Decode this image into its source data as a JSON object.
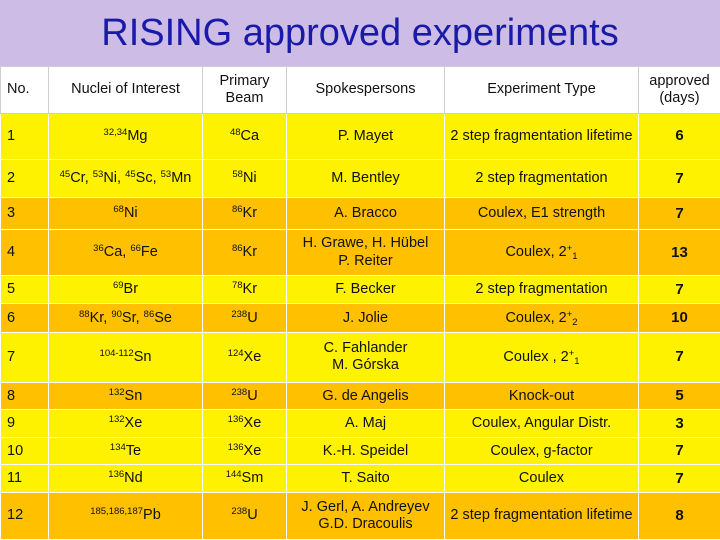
{
  "title": "RISING approved experiments",
  "headers": {
    "no": "No.",
    "nuclei": "Nuclei of Interest",
    "beam": "Primary Beam",
    "spokes": "Spokespersons",
    "type": "Experiment  Type",
    "days": "approved (days)"
  },
  "rows": [
    {
      "no": "1",
      "nuclei_a": "32,34",
      "nuclei_b": "Mg",
      "beam_a": "48",
      "beam_b": "Ca",
      "spokes": "P. Mayet",
      "type": "2 step fragmentation lifetime",
      "days": "6"
    },
    {
      "no": "2",
      "n1a": "45",
      "n1b": "Cr, ",
      "n2a": "53",
      "n2b": "Ni, ",
      "n3a": "45",
      "n3b": "Sc, ",
      "n4a": "53",
      "n4b": "Mn",
      "beam_a": "58",
      "beam_b": "Ni",
      "spokes": "M. Bentley",
      "type": "2 step fragmentation",
      "days": "7"
    },
    {
      "no": "3",
      "nuclei_a": "68",
      "nuclei_b": "Ni",
      "beam_a": "86",
      "beam_b": "Kr",
      "spokes": "A. Bracco",
      "type": "Coulex, E1 strength",
      "days": "7"
    },
    {
      "no": "4",
      "n1a": "36",
      "n1b": "Ca, ",
      "n2a": "66",
      "n2b": "Fe",
      "beam_a": "86",
      "beam_b": "Kr",
      "spokes1": "H. Grawe, H. Hübel",
      "spokes2": "P. Reiter",
      "type_a": "Coulex, 2",
      "type_sup": "+",
      "type_sub": "1",
      "days": "13"
    },
    {
      "no": "5",
      "nuclei_a": "69",
      "nuclei_b": "Br",
      "beam_a": "78",
      "beam_b": "Kr",
      "spokes": "F. Becker",
      "type": "2 step fragmentation",
      "days": "7"
    },
    {
      "no": "6",
      "n1a": "88",
      "n1b": "Kr, ",
      "n2a": "90",
      "n2b": "Sr, ",
      "n3a": "86",
      "n3b": "Se",
      "beam_a": "238",
      "beam_b": "U",
      "spokes": "J. Jolie",
      "type_a": "Coulex, 2",
      "type_sup": "+",
      "type_sub": "2",
      "days": "10"
    },
    {
      "no": "7",
      "nuclei_a": "104-112",
      "nuclei_b": "Sn",
      "beam_a": "124",
      "beam_b": "Xe",
      "spokes1": "C. Fahlander",
      "spokes2": "M. Górska",
      "type_a": "Coulex , 2",
      "type_sup": "+",
      "type_sub": "1",
      "days": "7"
    },
    {
      "no": "8",
      "nuclei_a": "132",
      "nuclei_b": "Sn",
      "beam_a": "238",
      "beam_b": "U",
      "spokes": "G. de Angelis",
      "type": "Knock-out",
      "days": "5"
    },
    {
      "no": "9",
      "nuclei_a": "132",
      "nuclei_b": "Xe",
      "beam_a": "136",
      "beam_b": "Xe",
      "spokes": "A. Maj",
      "type": "Coulex, Angular Distr.",
      "days": "3"
    },
    {
      "no": "10",
      "nuclei_a": "134",
      "nuclei_b": "Te",
      "beam_a": "136",
      "beam_b": "Xe",
      "spokes": "K.-H. Speidel",
      "type": "Coulex, g-factor",
      "days": "7"
    },
    {
      "no": "11",
      "nuclei_a": "136",
      "nuclei_b": "Nd",
      "beam_a": "144",
      "beam_b": "Sm",
      "spokes": "T. Saito",
      "type": "Coulex",
      "days": "7"
    },
    {
      "no": "12",
      "nuclei_a": "185,186,187",
      "nuclei_b": "Pb",
      "beam_a": "238",
      "beam_b": "U",
      "spokes1": "J. Gerl,  A. Andreyev",
      "spokes2": "G.D. Dracoulis",
      "type": "2 step fragmentation lifetime",
      "days": "8"
    }
  ]
}
